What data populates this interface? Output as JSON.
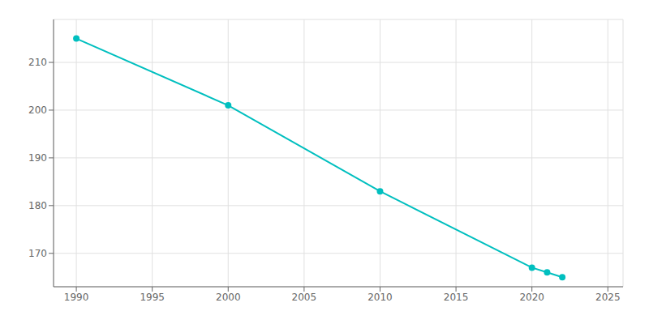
{
  "chart_data": {
    "type": "line",
    "x": [
      1990,
      2000,
      2010,
      2020,
      2021,
      2022
    ],
    "values": [
      215,
      201,
      183,
      167,
      166,
      165
    ],
    "color": "#00BFBF",
    "marker": "circle",
    "xlim": [
      1988.5,
      2026
    ],
    "ylim": [
      163,
      219
    ],
    "xticks": [
      1990,
      1995,
      2000,
      2005,
      2010,
      2015,
      2020,
      2025
    ],
    "yticks": [
      170,
      180,
      190,
      200,
      210
    ],
    "grid": true
  }
}
